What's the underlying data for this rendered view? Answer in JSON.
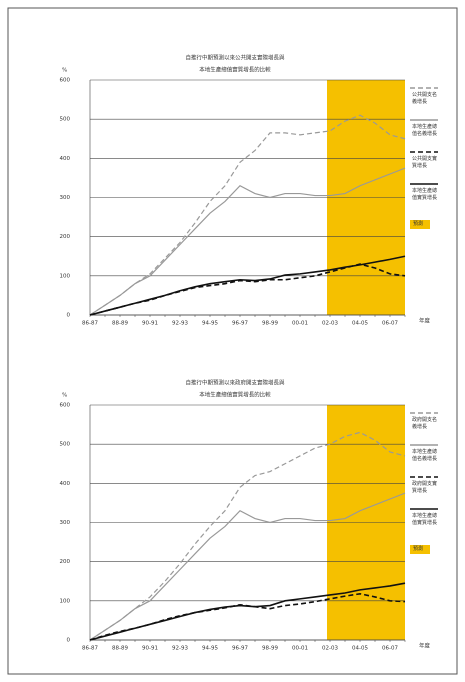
{
  "chart_data": [
    {
      "type": "line",
      "title": [
        "自推行中期預測以來公共開支實際增長與",
        "本地生產總值實質增長的比較"
      ],
      "y_label": "%",
      "x_label": "年度",
      "categories": [
        "86-87",
        null,
        "88-89",
        null,
        "90-91",
        null,
        "92-93",
        null,
        "94-95",
        null,
        "96-97",
        null,
        "98-99",
        null,
        "00-01",
        null,
        "02-03",
        null,
        "04-05",
        null,
        "06-07",
        null
      ],
      "ylim": [
        0,
        600
      ],
      "yticks": [
        0,
        100,
        200,
        300,
        400,
        500,
        600
      ],
      "grid": true,
      "forecast": {
        "label": "預測",
        "from": "02-03",
        "color": "#f5c000"
      },
      "series": [
        {
          "name": "公共開支名義增長",
          "color": "#999999",
          "dash": true,
          "values": [
            0,
            25,
            50,
            80,
            105,
            145,
            185,
            235,
            290,
            330,
            390,
            420,
            465,
            465,
            460,
            465,
            470,
            495,
            510,
            490,
            460,
            450
          ]
        },
        {
          "name": "本地生產總值名義增長",
          "color": "#999999",
          "dash": false,
          "values": [
            0,
            25,
            50,
            80,
            100,
            140,
            180,
            220,
            260,
            290,
            330,
            310,
            300,
            310,
            310,
            305,
            305,
            310,
            330,
            345,
            360,
            375
          ]
        },
        {
          "name": "公共開支實質增長",
          "color": "#111111",
          "dash": true,
          "values": [
            0,
            10,
            20,
            30,
            38,
            50,
            60,
            70,
            75,
            80,
            88,
            85,
            90,
            90,
            95,
            100,
            110,
            120,
            130,
            120,
            105,
            100
          ]
        },
        {
          "name": "本地生產總值實質增長",
          "color": "#111111",
          "dash": false,
          "values": [
            0,
            10,
            20,
            30,
            40,
            50,
            62,
            72,
            80,
            85,
            90,
            88,
            92,
            102,
            105,
            110,
            115,
            122,
            128,
            135,
            142,
            150
          ]
        }
      ]
    },
    {
      "type": "line",
      "title": [
        "自推行中期預測以來政府開支實際增長與",
        "本地生產總值實質增長的比較"
      ],
      "y_label": "%",
      "x_label": "年度",
      "categories": [
        "86-87",
        null,
        "88-89",
        null,
        "90-91",
        null,
        "92-93",
        null,
        "94-95",
        null,
        "96-97",
        null,
        "98-99",
        null,
        "00-01",
        null,
        "02-03",
        null,
        "04-05",
        null,
        "06-07",
        null
      ],
      "ylim": [
        0,
        600
      ],
      "yticks": [
        0,
        100,
        200,
        300,
        400,
        500,
        600
      ],
      "grid": true,
      "forecast": {
        "label": "預測",
        "from": "02-03",
        "color": "#f5c000"
      },
      "series": [
        {
          "name": "政府開支名義增長",
          "color": "#999999",
          "dash": true,
          "values": [
            0,
            25,
            50,
            80,
            110,
            150,
            195,
            245,
            290,
            330,
            390,
            420,
            430,
            450,
            470,
            490,
            500,
            520,
            530,
            510,
            480,
            470
          ]
        },
        {
          "name": "本地生產總值名義增長",
          "color": "#999999",
          "dash": false,
          "values": [
            0,
            25,
            50,
            80,
            100,
            140,
            180,
            220,
            260,
            290,
            330,
            310,
            300,
            310,
            310,
            305,
            305,
            310,
            330,
            345,
            360,
            375
          ]
        },
        {
          "name": "政府開支實質增長",
          "color": "#111111",
          "dash": true,
          "values": [
            0,
            12,
            22,
            30,
            40,
            52,
            62,
            70,
            76,
            82,
            90,
            85,
            80,
            88,
            92,
            98,
            105,
            112,
            118,
            110,
            100,
            98
          ]
        },
        {
          "name": "本地生產總值實質增長",
          "color": "#111111",
          "dash": false,
          "values": [
            0,
            10,
            20,
            30,
            40,
            50,
            60,
            70,
            78,
            84,
            88,
            85,
            88,
            100,
            105,
            110,
            115,
            120,
            128,
            133,
            138,
            145
          ]
        }
      ]
    }
  ]
}
